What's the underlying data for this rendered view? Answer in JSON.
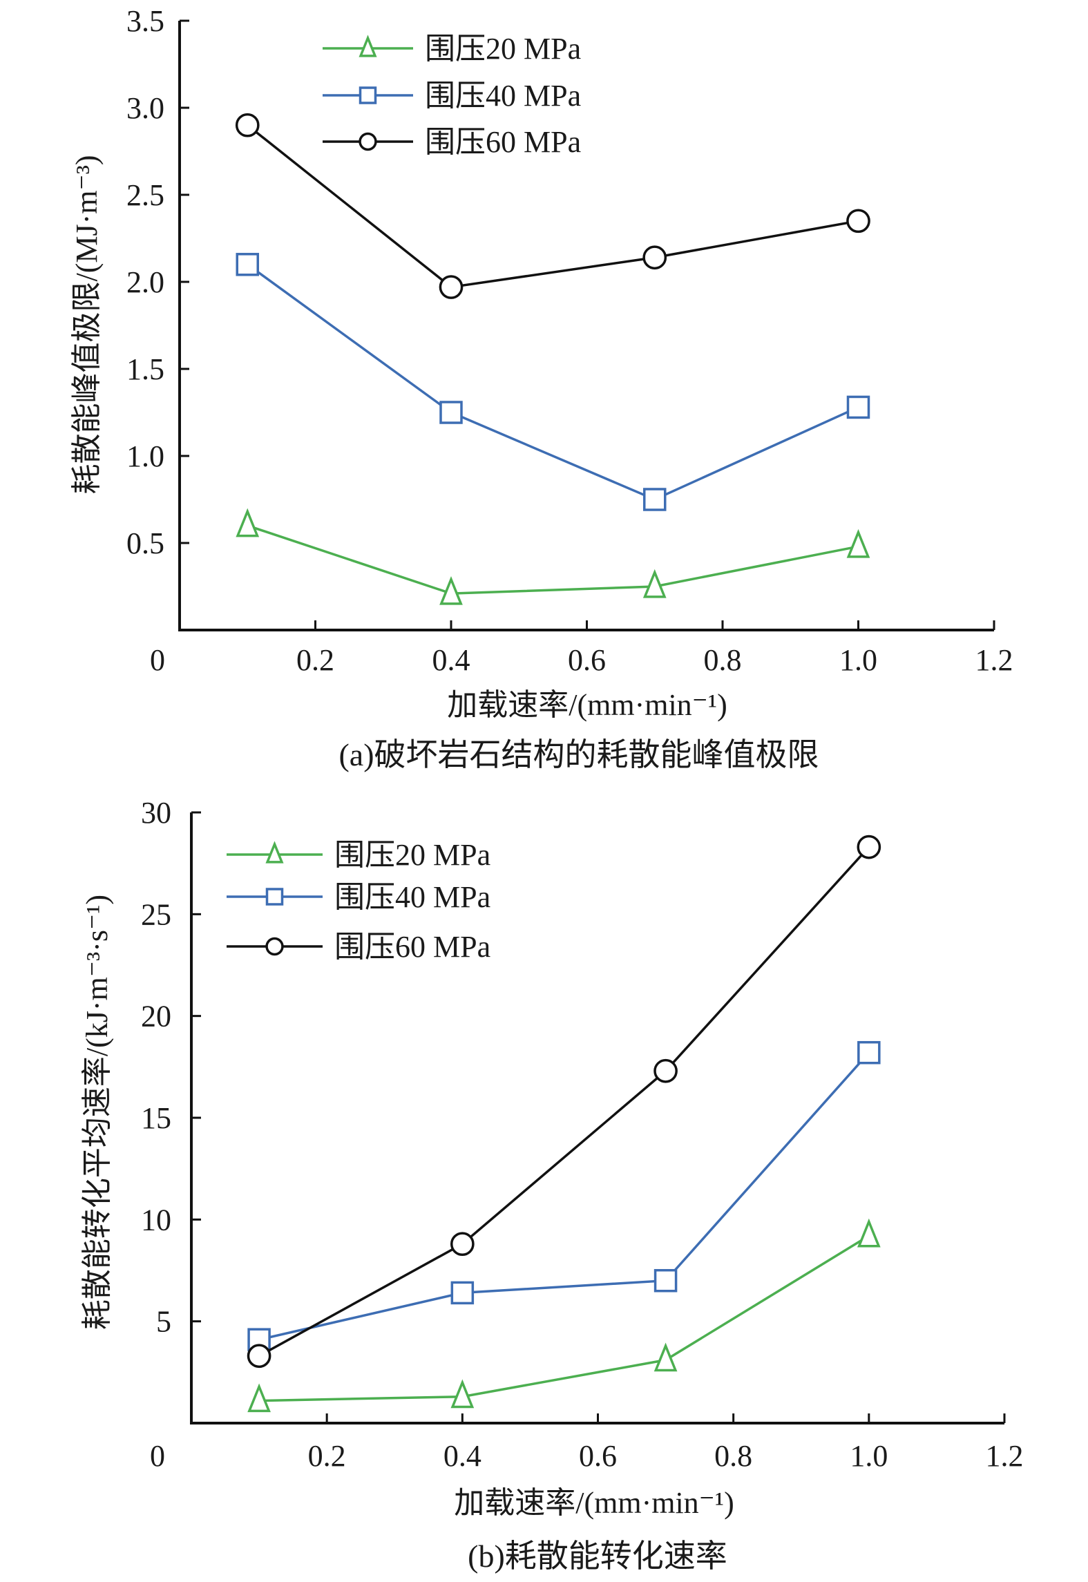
{
  "chart_data": [
    {
      "type": "line",
      "title": "",
      "caption": "(a)破坏岩石结构的耗散能峰值极限",
      "xlabel": "加载速率/(mm·min⁻¹)",
      "ylabel": "耗散能峰值极限/(MJ·m⁻³)",
      "xlim": [
        0,
        1.2
      ],
      "ylim": [
        0,
        3.5
      ],
      "xticks": [
        0,
        0.2,
        0.4,
        0.6,
        0.8,
        1.0,
        1.2
      ],
      "xtick_labels": [
        "0",
        "0.2",
        "0.4",
        "0.6",
        "0.8",
        "1.0",
        "1.2"
      ],
      "yticks": [
        0.5,
        1.0,
        1.5,
        2.0,
        2.5,
        3.0,
        3.5
      ],
      "ytick_labels": [
        "0.5",
        "1.0",
        "1.5",
        "2.0",
        "2.5",
        "3.0",
        "3.5"
      ],
      "grid": false,
      "legend_position": "top-center",
      "x": [
        0.1,
        0.4,
        0.7,
        1.0
      ],
      "series": [
        {
          "name": "围压20 MPa",
          "marker": "triangle",
          "color": "#4caf50",
          "values": [
            0.6,
            0.21,
            0.25,
            0.48
          ]
        },
        {
          "name": "围压40 MPa",
          "marker": "square",
          "color": "#3d6db3",
          "values": [
            2.1,
            1.25,
            0.75,
            1.28
          ]
        },
        {
          "name": "围压60 MPa",
          "marker": "circle",
          "color": "#111111",
          "values": [
            2.9,
            1.97,
            2.14,
            2.35
          ]
        }
      ]
    },
    {
      "type": "line",
      "title": "",
      "caption": "(b)耗散能转化速率",
      "xlabel": "加载速率/(mm·min⁻¹)",
      "ylabel": "耗散能转化平均速率/(kJ·m⁻³·s⁻¹)",
      "xlim": [
        0,
        1.2
      ],
      "ylim": [
        0,
        30
      ],
      "xticks": [
        0,
        0.2,
        0.4,
        0.6,
        0.8,
        1.0,
        1.2
      ],
      "xtick_labels": [
        "0",
        "0.2",
        "0.4",
        "0.6",
        "0.8",
        "1.0",
        "1.2"
      ],
      "yticks": [
        5,
        10,
        15,
        20,
        25,
        30
      ],
      "ytick_labels": [
        "5",
        "10",
        "15",
        "20",
        "25",
        "30"
      ],
      "grid": false,
      "legend_position": "top-left",
      "x": [
        0.1,
        0.4,
        0.7,
        1.0
      ],
      "series": [
        {
          "name": "围压20 MPa",
          "marker": "triangle",
          "color": "#4caf50",
          "values": [
            1.1,
            1.3,
            3.1,
            9.2
          ]
        },
        {
          "name": "围压40 MPa",
          "marker": "square",
          "color": "#3d6db3",
          "values": [
            4.1,
            6.4,
            7.0,
            18.2
          ]
        },
        {
          "name": "围压60 MPa",
          "marker": "circle",
          "color": "#111111",
          "values": [
            3.3,
            8.8,
            17.3,
            28.3
          ]
        }
      ]
    }
  ]
}
